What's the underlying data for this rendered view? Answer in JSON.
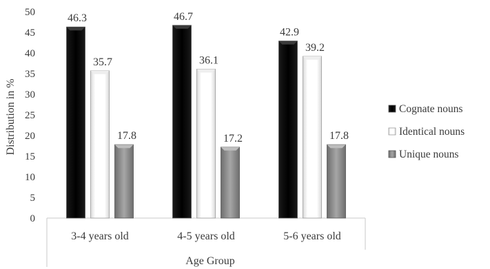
{
  "chart_data": {
    "type": "bar",
    "categories": [
      "3-4 years old",
      "4-5 years old",
      "5-6 years old"
    ],
    "series": [
      {
        "name": "Cognate nouns",
        "values": [
          46.3,
          46.7,
          42.9
        ],
        "color": "#0d0d0d"
      },
      {
        "name": "Identical nouns",
        "values": [
          35.7,
          36.1,
          39.2
        ],
        "color": "#ffffff"
      },
      {
        "name": "Unique nouns",
        "values": [
          17.8,
          17.2,
          17.8
        ],
        "color": "#8f8f8f"
      }
    ],
    "data_labels": [
      [
        "46.3",
        "35.7",
        "17.8"
      ],
      [
        "46.7",
        "36.1",
        "17.2"
      ],
      [
        "42.9",
        "39.2",
        "17.8"
      ]
    ],
    "yticks": [
      "0",
      "5",
      "10",
      "15",
      "20",
      "25",
      "30",
      "35",
      "40",
      "45",
      "50"
    ],
    "ylim": [
      0,
      50
    ],
    "xlabel": "Age Group",
    "ylabel": "Distribution in %",
    "legend_position": "right",
    "grid": false
  }
}
